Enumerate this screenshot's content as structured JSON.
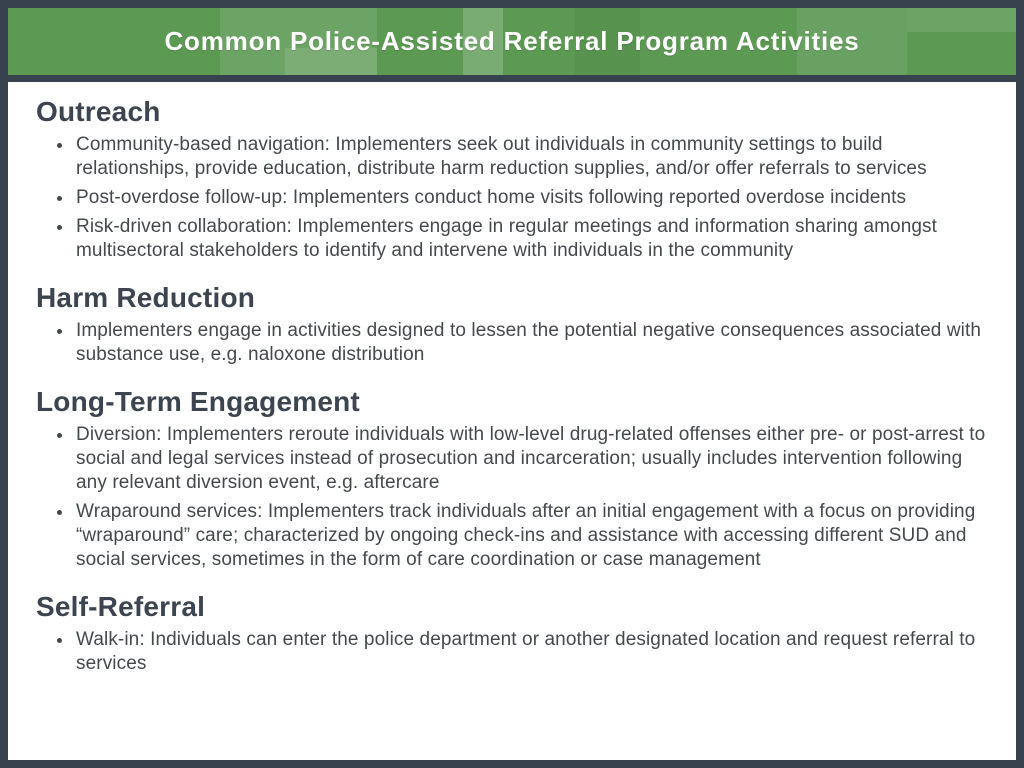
{
  "header": {
    "title": "Common Police-Assisted Referral Program Activities"
  },
  "colors": {
    "header_green": "#5c9a54",
    "frame_dark_slate": "#38424e",
    "heading_text": "#3c4450",
    "body_text": "#45494d",
    "title_text": "#ffffff"
  },
  "sections": [
    {
      "heading": "Outreach",
      "bullets": [
        "Community-based navigation: Implementers seek out individuals in community settings to build relationships, provide education, distribute harm reduction supplies, and/or offer referrals to services",
        "Post-overdose follow-up: Implementers conduct home visits following reported overdose incidents",
        "Risk-driven collaboration: Implementers engage in regular meetings and information sharing amongst multisectoral stakeholders to identify and intervene with individuals in the community"
      ]
    },
    {
      "heading": "Harm Reduction",
      "bullets": [
        "Implementers engage in activities designed to lessen the potential negative consequences associated with substance use, e.g. naloxone distribution"
      ]
    },
    {
      "heading": "Long-Term Engagement",
      "bullets": [
        "Diversion: Implementers reroute individuals with low-level drug-related offenses either pre- or post-arrest to social and legal services instead of prosecution and incarceration; usually includes intervention following any relevant diversion event, e.g. aftercare",
        "Wraparound services: Implementers track individuals after an initial engagement with a focus on providing “wraparound” care; characterized by ongoing check-ins and assistance with accessing different SUD and social services, sometimes in the form of care coordination or case management"
      ]
    },
    {
      "heading": "Self-Referral",
      "bullets": [
        "Walk-in: Individuals can enter the police department or another designated location and request referral to services"
      ]
    }
  ]
}
